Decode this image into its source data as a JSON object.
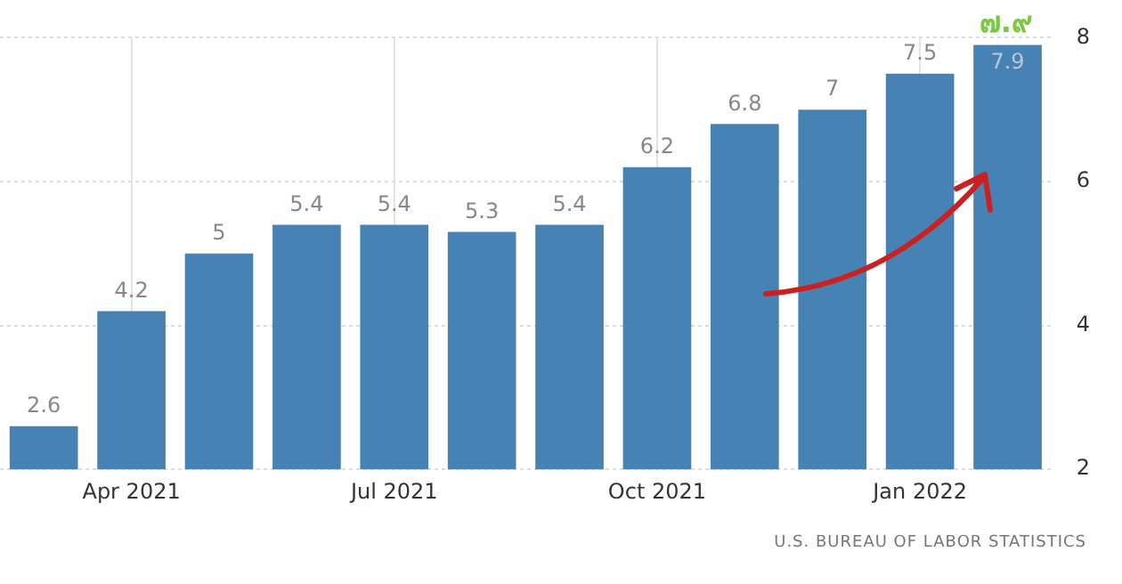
{
  "chart_data": {
    "type": "bar",
    "categories": [
      null,
      "Apr 2021",
      null,
      null,
      "Jul 2021",
      null,
      null,
      "Oct 2021",
      null,
      null,
      "Jan 2022",
      null
    ],
    "values": [
      2.6,
      4.2,
      5,
      5.4,
      5.4,
      5.3,
      5.4,
      6.2,
      6.8,
      7,
      7.5,
      7.9
    ],
    "color": "#4682b4",
    "ylim": [
      2,
      8
    ],
    "yticks": [
      2,
      4,
      6,
      8
    ],
    "grid": true,
    "data_labels": true,
    "annotations": [
      "๗.๙",
      "U.S. BUREAU OF LABOR STATISTICS"
    ]
  }
}
